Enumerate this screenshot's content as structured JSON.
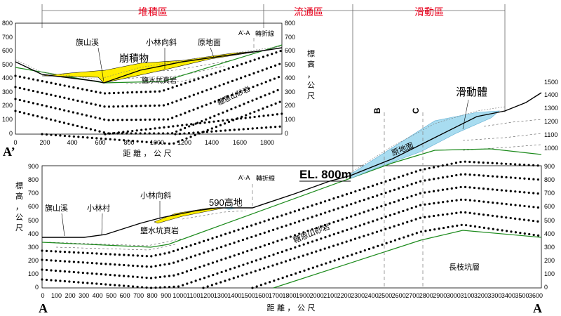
{
  "zones": {
    "deposition": "堆積區",
    "flow": "流通區",
    "slide": "滑動區"
  },
  "top_section": {
    "y_ticks": [
      "800",
      "700",
      "600",
      "500",
      "400",
      "300",
      "200",
      "100",
      "0"
    ],
    "x_ticks": [
      "0",
      "200",
      "400",
      "600",
      "800",
      "1000",
      "1200",
      "1400",
      "1600",
      "1800"
    ],
    "x_axis_label": "距 離 ， 公 尺",
    "y_axis_label": "標\n高\n，\n公\n尺",
    "corner_label": "A’",
    "labels": {
      "qishan": "旗山溪",
      "xiaolin_syncline": "小林向斜",
      "original_ground": "原地面",
      "aa": "A’-A",
      "turn_line": "轉折線",
      "colluvium": "崩積物",
      "yanshuikeng": "鹽水坑頁岩",
      "tangen": "糖恩山砂岩"
    }
  },
  "bottom_section": {
    "y_ticks_left": [
      "900",
      "800",
      "700",
      "600",
      "500",
      "400",
      "300",
      "200",
      "100",
      "0"
    ],
    "y_ticks_right": [
      "1500",
      "1400",
      "1300",
      "1200",
      "1100",
      "1000",
      "900",
      "800",
      "700",
      "600",
      "500",
      "400",
      "300",
      "200",
      "100",
      "0"
    ],
    "x_ticks": [
      "0",
      "100",
      "200",
      "300",
      "400",
      "500",
      "600",
      "700",
      "800",
      "900",
      "1000",
      "1100",
      "1200",
      "1300",
      "1400",
      "1500",
      "1600",
      "1700",
      "1800",
      "1900",
      "2000",
      "2100",
      "2200",
      "2300",
      "2400",
      "2500",
      "2600",
      "2700",
      "2800",
      "2900",
      "3000",
      "3100",
      "3200",
      "3300",
      "3400",
      "3500",
      "3600"
    ],
    "x_axis_label": "距 離 ， 公 尺",
    "y_axis_label": "標\n高\n，\n公\n尺",
    "corner_left": "A",
    "corner_right": "A",
    "labels": {
      "qishan": "旗山溪",
      "xiaolin_village": "小林村",
      "xiaolin_syncline": "小林向斜",
      "hill590": "590高地",
      "aa": "A’-A",
      "turn_line": "轉折線",
      "el800": "EL. 800m",
      "original_ground": "原地面",
      "sliding_mass": "滑動體",
      "b_label": "B",
      "c_label": "C",
      "yanshuikeng": "鹽水坑頁岩",
      "tangen": "糖恩山砂岩",
      "changzhikeng": "長枝坑層"
    }
  },
  "colors": {
    "colluvium": "#ffee00",
    "sliding_mass": "#a8dcf0",
    "bedding": "#1b8a1b",
    "zone_text": "#e8001c"
  }
}
